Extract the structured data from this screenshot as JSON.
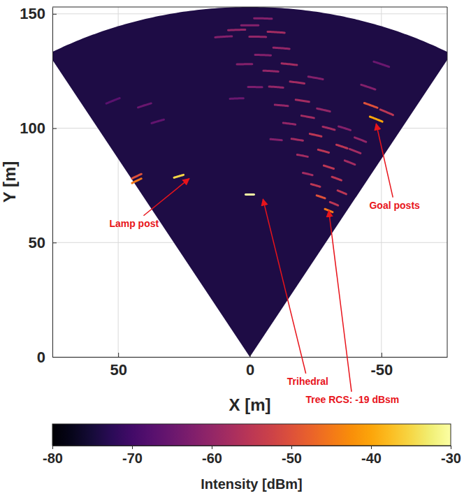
{
  "chart_data": {
    "type": "scatter",
    "xlabel": "X [m]",
    "ylabel": "Y [m]",
    "xlim": [
      75,
      -75
    ],
    "ylim": [
      0,
      153
    ],
    "xticks": [
      50,
      0,
      -50
    ],
    "yticks": [
      0,
      50,
      100,
      150
    ],
    "grid": true,
    "max_range": 153,
    "azimuth_limits": [
      -30,
      30
    ],
    "background_intensity": -74,
    "points": [
      {
        "x": 40,
        "y": 110,
        "value": -65
      },
      {
        "x": 35,
        "y": 103,
        "value": -66
      },
      {
        "x": 52,
        "y": 112,
        "value": -67
      },
      {
        "x": 10,
        "y": 140,
        "value": -62
      },
      {
        "x": 5,
        "y": 143,
        "value": -60
      },
      {
        "x": 0,
        "y": 145,
        "value": -62
      },
      {
        "x": -5,
        "y": 148,
        "value": -62
      },
      {
        "x": -3,
        "y": 140,
        "value": -60
      },
      {
        "x": -10,
        "y": 142,
        "value": -58
      },
      {
        "x": -5,
        "y": 132,
        "value": -62
      },
      {
        "x": -12,
        "y": 135,
        "value": -60
      },
      {
        "x": 2,
        "y": 128,
        "value": -62
      },
      {
        "x": -8,
        "y": 125,
        "value": -60
      },
      {
        "x": -15,
        "y": 128,
        "value": -58
      },
      {
        "x": -2,
        "y": 118,
        "value": -63
      },
      {
        "x": 5,
        "y": 113,
        "value": -65
      },
      {
        "x": -10,
        "y": 118,
        "value": -60
      },
      {
        "x": -18,
        "y": 120,
        "value": -58
      },
      {
        "x": -25,
        "y": 122,
        "value": -62
      },
      {
        "x": -45,
        "y": 118,
        "value": -62
      },
      {
        "x": -50,
        "y": 128,
        "value": -65
      },
      {
        "x": -12,
        "y": 110,
        "value": -60
      },
      {
        "x": -20,
        "y": 112,
        "value": -58
      },
      {
        "x": -15,
        "y": 102,
        "value": -60
      },
      {
        "x": -22,
        "y": 105,
        "value": -58
      },
      {
        "x": -28,
        "y": 108,
        "value": -60
      },
      {
        "x": -10,
        "y": 95,
        "value": -62
      },
      {
        "x": -18,
        "y": 95,
        "value": -58
      },
      {
        "x": -25,
        "y": 97,
        "value": -55
      },
      {
        "x": -30,
        "y": 100,
        "value": -58
      },
      {
        "x": -36,
        "y": 100,
        "value": -62
      },
      {
        "x": -42,
        "y": 95,
        "value": -60
      },
      {
        "x": -40,
        "y": 90,
        "value": -58
      },
      {
        "x": -20,
        "y": 88,
        "value": -58
      },
      {
        "x": -28,
        "y": 90,
        "value": -55
      },
      {
        "x": -35,
        "y": 92,
        "value": -55
      },
      {
        "x": -38,
        "y": 85,
        "value": -58
      },
      {
        "x": -22,
        "y": 80,
        "value": -58
      },
      {
        "x": -30,
        "y": 83,
        "value": -55
      },
      {
        "x": -33,
        "y": 78,
        "value": -55
      },
      {
        "x": -25,
        "y": 75,
        "value": -55
      },
      {
        "x": -35,
        "y": 72,
        "value": -55
      },
      {
        "x": -27,
        "y": 70,
        "value": -50
      },
      {
        "x": -32,
        "y": 67,
        "value": -55
      },
      {
        "x": -30,
        "y": 64,
        "value": -45
      },
      {
        "x": -52,
        "y": 107,
        "value": -55
      },
      {
        "x": -46,
        "y": 110,
        "value": -50
      },
      {
        "x": -48,
        "y": 104,
        "value": -40
      },
      {
        "x": 43,
        "y": 79,
        "value": -50
      },
      {
        "x": 43,
        "y": 77,
        "value": -45
      },
      {
        "x": 27,
        "y": 79,
        "value": -35
      },
      {
        "x": 0,
        "y": 71,
        "value": -30
      }
    ],
    "annotations": [
      {
        "text": "Lamp post",
        "x": 23,
        "y": 78,
        "text_x": 44,
        "text_y": 58
      },
      {
        "text": "Trihedral",
        "x": -5,
        "y": 69,
        "text_x": -22,
        "text_y": -11
      },
      {
        "text": "Tree RCS: -19 dBsm",
        "x": -30,
        "y": 64,
        "text_x": -39,
        "text_y": -19
      },
      {
        "text": "Goal posts",
        "x": -48,
        "y": 102,
        "text_x": -55,
        "text_y": 66
      }
    ],
    "colorbar": {
      "range": [
        -80,
        -30
      ],
      "ticks": [
        -80,
        -70,
        -60,
        -50,
        -40,
        -30
      ],
      "label": "Intensity [dBm]"
    }
  }
}
